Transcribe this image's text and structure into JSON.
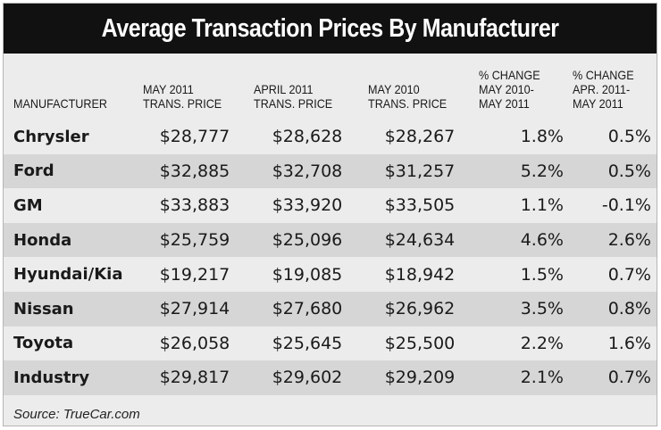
{
  "chart_data": {
    "type": "table",
    "title": "Average Transaction Prices By Manufacturer",
    "columns": [
      [
        "MANUFACTURER"
      ],
      [
        "MAY 2011",
        "TRANS. PRICE"
      ],
      [
        "APRIL 2011",
        "TRANS. PRICE"
      ],
      [
        "MAY 2010",
        "TRANS. PRICE"
      ],
      [
        "% CHANGE",
        "MAY 2010-",
        "MAY 2011"
      ],
      [
        "% CHANGE",
        "APR. 2011-",
        "MAY  2011"
      ]
    ],
    "rows": [
      [
        "Chrysler",
        "$28,777",
        "$28,628",
        "$28,267",
        "1.8%",
        "0.5%"
      ],
      [
        "Ford",
        "$32,885",
        "$32,708",
        "$31,257",
        "5.2%",
        "0.5%"
      ],
      [
        "GM",
        "$33,883",
        "$33,920",
        "$33,505",
        "1.1%",
        "-0.1%"
      ],
      [
        "Honda",
        "$25,759",
        "$25,096",
        "$24,634",
        "4.6%",
        "2.6%"
      ],
      [
        "Hyundai/Kia",
        "$19,217",
        "$19,085",
        "$18,942",
        "1.5%",
        "0.7%"
      ],
      [
        "Nissan",
        "$27,914",
        "$27,680",
        "$26,962",
        "3.5%",
        "0.8%"
      ],
      [
        "Toyota",
        "$26,058",
        "$25,645",
        "$25,500",
        "2.2%",
        "1.6%"
      ],
      [
        "Industry",
        "$29,817",
        "$29,602",
        "$29,209",
        "2.1%",
        "0.7%"
      ]
    ],
    "source": "Source: TrueCar.com"
  },
  "colors": {
    "title_bg": "#111111",
    "title_fg": "#ffffff",
    "row_light": "#ececec",
    "row_dark": "#d6d6d6"
  }
}
